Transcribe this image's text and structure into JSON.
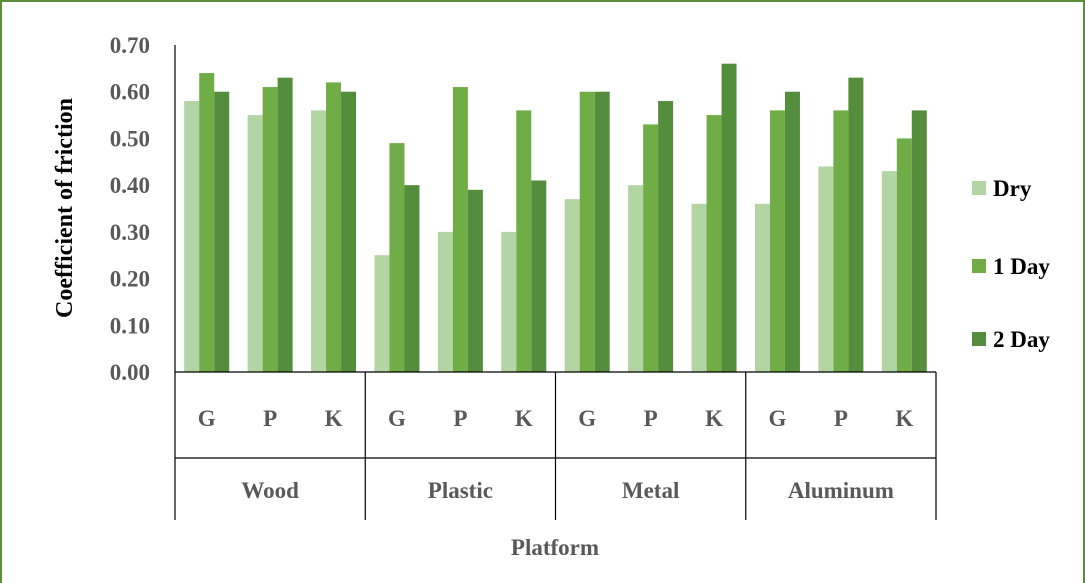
{
  "chart_data": {
    "type": "bar",
    "ylabel": "Coefficient of friction",
    "xlabel": "Platform",
    "ylim": [
      0,
      0.7
    ],
    "yticks": [
      "0.00",
      "0.10",
      "0.20",
      "0.30",
      "0.40",
      "0.50",
      "0.60",
      "0.70"
    ],
    "groups": [
      "Wood",
      "Plastic",
      "Metal",
      "Aluminum"
    ],
    "subcategories": [
      "G",
      "P",
      "K"
    ],
    "categories": [
      "Wood G",
      "Wood P",
      "Wood K",
      "Plastic G",
      "Plastic P",
      "Plastic K",
      "Metal G",
      "Metal P",
      "Metal K",
      "Aluminum G",
      "Aluminum P",
      "Aluminum K"
    ],
    "series": [
      {
        "name": "Dry",
        "color": "#b3d4a3",
        "values": [
          0.58,
          0.55,
          0.56,
          0.25,
          0.3,
          0.3,
          0.37,
          0.4,
          0.36,
          0.36,
          0.44,
          0.43
        ]
      },
      {
        "name": "1 Day",
        "color": "#70ad47",
        "values": [
          0.64,
          0.61,
          0.62,
          0.49,
          0.61,
          0.56,
          0.6,
          0.53,
          0.55,
          0.56,
          0.56,
          0.5
        ]
      },
      {
        "name": "2 Day",
        "color": "#548d3b",
        "values": [
          0.6,
          0.63,
          0.6,
          0.4,
          0.39,
          0.41,
          0.6,
          0.58,
          0.66,
          0.6,
          0.63,
          0.56
        ]
      }
    ],
    "legend_position": "right",
    "grid": false
  }
}
